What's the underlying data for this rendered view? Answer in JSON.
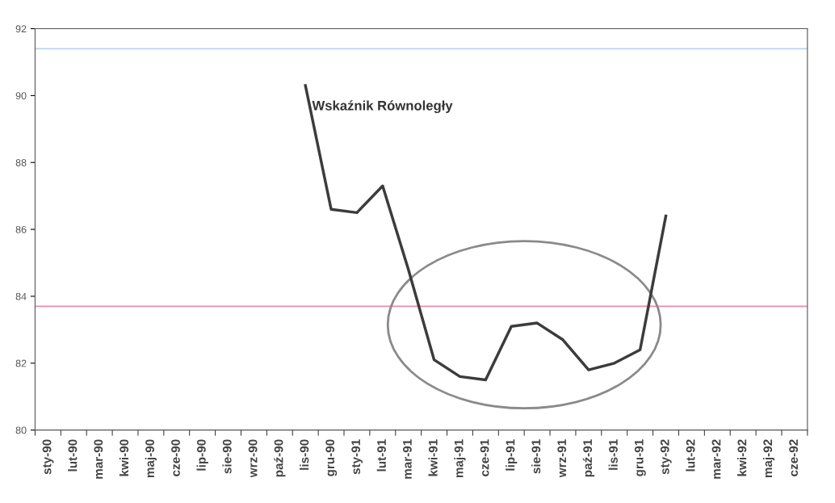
{
  "chart_data": {
    "type": "line",
    "categories": [
      "sty-90",
      "lut-90",
      "mar-90",
      "kwi-90",
      "maj-90",
      "cze-90",
      "lip-90",
      "sie-90",
      "wrz-90",
      "paź-90",
      "lis-90",
      "gru-90",
      "sty-91",
      "lut-91",
      "mar-91",
      "kwi-91",
      "maj-91",
      "cze-91",
      "lip-91",
      "sie-91",
      "wrz-91",
      "paź-91",
      "lis-91",
      "gru-91",
      "sty-92",
      "lut-92",
      "mar-92",
      "kwi-92",
      "maj-92",
      "cze-92"
    ],
    "series": [
      {
        "name": "Wskaźnik Równoległy",
        "color": "#3c3c3c",
        "values": [
          null,
          null,
          null,
          null,
          null,
          null,
          null,
          null,
          null,
          null,
          90.3,
          86.6,
          86.5,
          87.3,
          84.8,
          82.1,
          81.6,
          81.5,
          83.1,
          83.2,
          82.7,
          81.8,
          82.0,
          82.4,
          86.4,
          null,
          null,
          null,
          null,
          null
        ]
      }
    ],
    "ylim": [
      80,
      92
    ],
    "yticks": [
      80,
      82,
      84,
      86,
      88,
      90,
      92
    ],
    "ref_lines": [
      {
        "axis": "y",
        "value": 83.7,
        "color": "#f08aa8"
      },
      {
        "axis": "y",
        "value": 91.4,
        "color": "#b8d4ee"
      }
    ],
    "grid": false,
    "legend": false,
    "marker": "none",
    "line_style": "solid"
  }
}
